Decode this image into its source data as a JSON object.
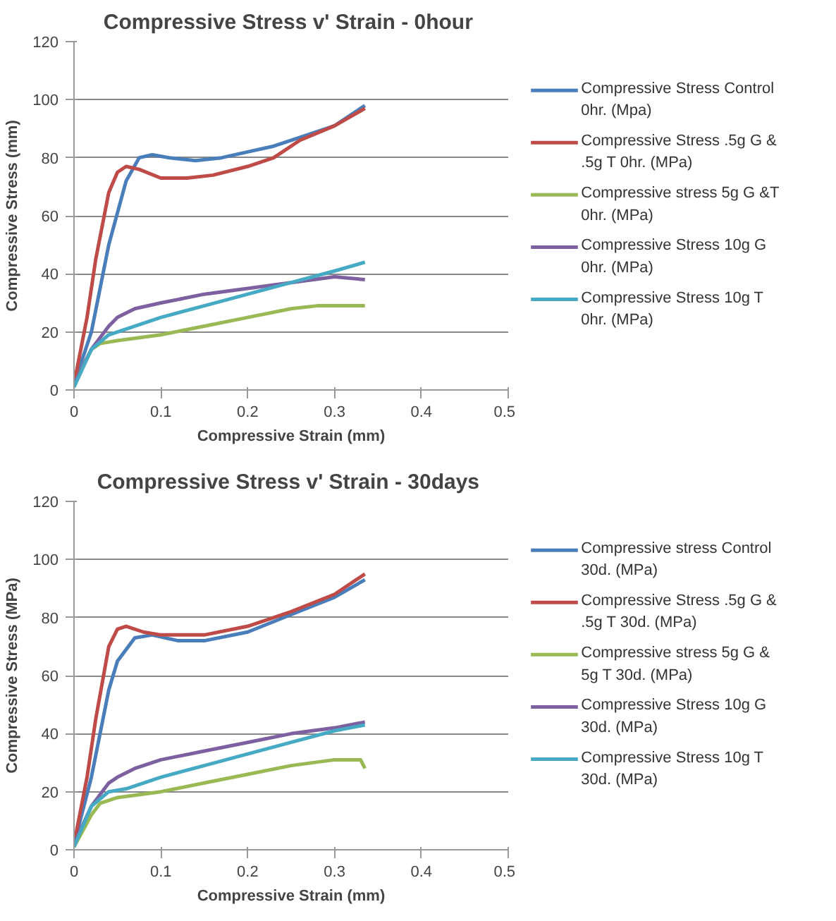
{
  "chart_data": [
    {
      "type": "line",
      "title": "Compressive Stress v' Strain  - 0hour",
      "xlabel": "Compressive Strain (mm)",
      "ylabel": "Compressive Stress (mm)",
      "xlim": [
        0,
        0.5
      ],
      "xticks": [
        0,
        0.1,
        0.2,
        0.3,
        0.4,
        0.5
      ],
      "ylim": [
        0,
        120
      ],
      "yticks": [
        0,
        20,
        40,
        60,
        80,
        100,
        120
      ],
      "grid": "y",
      "legend": "right",
      "marker": "none",
      "line_style": "solid",
      "series": [
        {
          "name": "Compressive Stress Control 0hr.  (Mpa)",
          "color": "#4a7ebb",
          "x": [
            0,
            0.02,
            0.04,
            0.06,
            0.075,
            0.09,
            0.11,
            0.14,
            0.17,
            0.2,
            0.23,
            0.26,
            0.3,
            0.335
          ],
          "values": [
            2,
            20,
            50,
            72,
            80,
            81,
            80,
            79,
            80,
            82,
            84,
            87,
            91,
            98
          ]
        },
        {
          "name": "Compressive Stress .5g G & .5g T 0hr. (MPa)",
          "color": "#be4b48",
          "x": [
            0,
            0.015,
            0.025,
            0.04,
            0.05,
            0.06,
            0.075,
            0.1,
            0.13,
            0.16,
            0.2,
            0.23,
            0.26,
            0.3,
            0.335
          ],
          "values": [
            2,
            25,
            45,
            68,
            75,
            77,
            76,
            73,
            73,
            74,
            77,
            80,
            86,
            91,
            97
          ]
        },
        {
          "name": "Compressive stress 5g G &T 0hr. (MPa)",
          "color": "#98b954",
          "x": [
            0,
            0.02,
            0.03,
            0.05,
            0.1,
            0.15,
            0.2,
            0.25,
            0.28,
            0.335
          ],
          "values": [
            2,
            14,
            16,
            17,
            19,
            22,
            25,
            28,
            29,
            29
          ]
        },
        {
          "name": "Compressive Stress 10g G 0hr. (MPa)",
          "color": "#7d60a0",
          "x": [
            0,
            0.02,
            0.04,
            0.05,
            0.07,
            0.1,
            0.15,
            0.2,
            0.25,
            0.3,
            0.335
          ],
          "values": [
            2,
            14,
            22,
            25,
            28,
            30,
            33,
            35,
            37,
            39,
            38
          ]
        },
        {
          "name": "Compressive Stress 10g T 0hr. (MPa)",
          "color": "#46aac5",
          "x": [
            0,
            0.02,
            0.04,
            0.06,
            0.1,
            0.15,
            0.2,
            0.25,
            0.3,
            0.335
          ],
          "values": [
            1,
            14,
            19,
            21,
            25,
            29,
            33,
            37,
            41,
            44
          ]
        }
      ]
    },
    {
      "type": "line",
      "title": "Compressive Stress v' Strain  - 30days",
      "xlabel": "Compressive Strain (mm)",
      "ylabel": "Compressive Stress (MPa)",
      "xlim": [
        0,
        0.5
      ],
      "xticks": [
        0,
        0.1,
        0.2,
        0.3,
        0.4,
        0.5
      ],
      "ylim": [
        0,
        120
      ],
      "yticks": [
        0,
        20,
        40,
        60,
        80,
        100,
        120
      ],
      "grid": "y",
      "legend": "right",
      "marker": "none",
      "line_style": "solid",
      "series": [
        {
          "name": "Compressive stress Control 30d. (MPa)",
          "color": "#4a7ebb",
          "x": [
            0,
            0.02,
            0.04,
            0.05,
            0.07,
            0.09,
            0.12,
            0.15,
            0.2,
            0.25,
            0.3,
            0.335
          ],
          "values": [
            2,
            25,
            55,
            65,
            73,
            74,
            72,
            72,
            75,
            81,
            87,
            93
          ]
        },
        {
          "name": "Compressive Stress .5g G & .5g T 30d. (MPa)",
          "color": "#be4b48",
          "x": [
            0,
            0.015,
            0.025,
            0.04,
            0.05,
            0.06,
            0.08,
            0.1,
            0.15,
            0.2,
            0.25,
            0.3,
            0.335
          ],
          "values": [
            2,
            25,
            45,
            70,
            76,
            77,
            75,
            74,
            74,
            77,
            82,
            88,
            95
          ]
        },
        {
          "name": "Compressive stress 5g G & 5g T 30d. (MPa)",
          "color": "#98b954",
          "x": [
            0,
            0.02,
            0.03,
            0.05,
            0.1,
            0.15,
            0.2,
            0.25,
            0.3,
            0.33,
            0.335
          ],
          "values": [
            1,
            12,
            16,
            18,
            20,
            23,
            26,
            29,
            31,
            31,
            28
          ]
        },
        {
          "name": "Compressive Stress 10g G 30d. (MPa)",
          "color": "#7d60a0",
          "x": [
            0,
            0.02,
            0.04,
            0.05,
            0.07,
            0.1,
            0.15,
            0.2,
            0.25,
            0.3,
            0.335
          ],
          "values": [
            2,
            15,
            23,
            25,
            28,
            31,
            34,
            37,
            40,
            42,
            44
          ]
        },
        {
          "name": "Compressive Stress 10g T 30d. (MPa)",
          "color": "#46aac5",
          "x": [
            0,
            0.02,
            0.04,
            0.06,
            0.1,
            0.15,
            0.2,
            0.25,
            0.3,
            0.335
          ],
          "values": [
            1,
            15,
            20,
            21,
            25,
            29,
            33,
            37,
            41,
            43
          ]
        }
      ]
    }
  ]
}
